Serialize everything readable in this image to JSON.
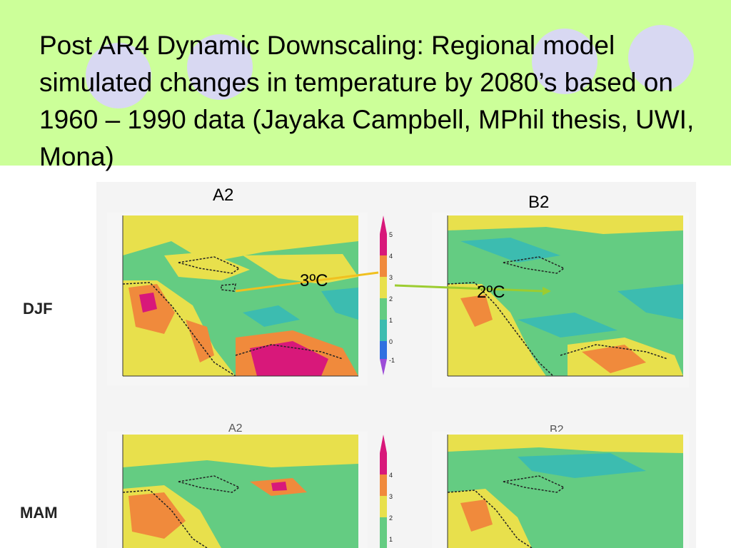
{
  "slide": {
    "title": "Post AR4 Dynamic Downscaling: Regional model simulated changes in temperature by 2080’s based on 1960 – 1990 data (Jayaka Campbell, MPhil thesis, UWI, Mona)"
  },
  "figure": {
    "column_labels": [
      "A2",
      "B2"
    ],
    "row_labels": [
      "DJF",
      "MAM"
    ],
    "panel_titles": [
      "A2",
      "B2"
    ],
    "annotations": [
      "3ºC",
      "2ºC"
    ],
    "colorbar_ticks": [
      "5",
      "4",
      "3",
      "2",
      "1",
      "0",
      "-1"
    ],
    "colors": {
      "banner": "#ccff99",
      "circles": "#d8d8f2",
      "ocean": "#64cc82",
      "warm": "#e8e04c",
      "hot": "#f08a3c",
      "hottest": "#d8187a",
      "cool": "#3cbcb0",
      "arrow_a2": "#f0c020",
      "arrow_b2": "#9ccc30"
    }
  }
}
